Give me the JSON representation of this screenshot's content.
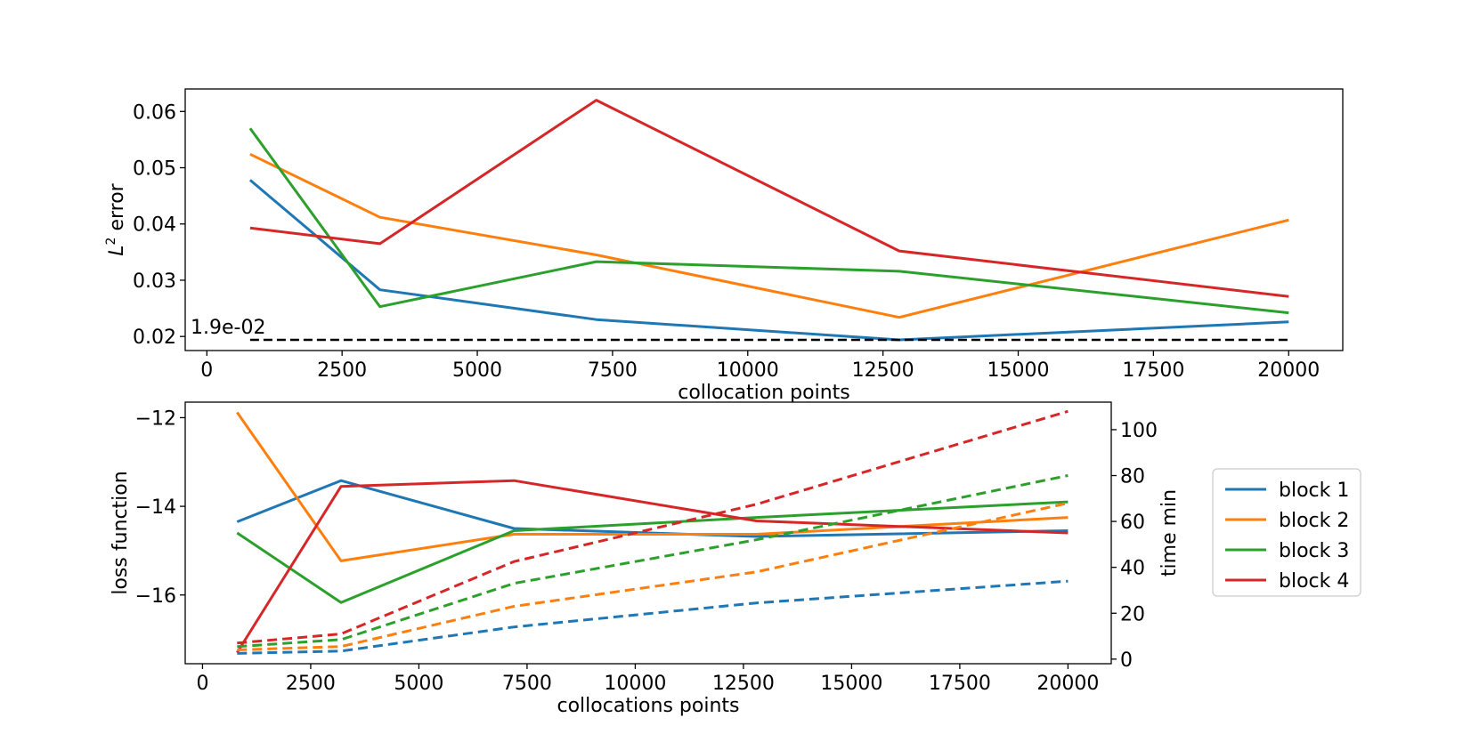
{
  "chart_data": [
    {
      "type": "line",
      "x": [
        800,
        3200,
        7200,
        12800,
        20000
      ],
      "xlabel": "collocation points",
      "ylabel_math": "L",
      "ylabel_sup": "2",
      "ylabel_rest": " error",
      "xlim": [
        -400,
        21000
      ],
      "ylim": [
        0.0175,
        0.064
      ],
      "xticks": [
        0,
        2500,
        5000,
        7500,
        10000,
        12500,
        15000,
        17500,
        20000
      ],
      "xtick_labels": [
        "0",
        "2500",
        "5000",
        "7500",
        "10000",
        "12500",
        "15000",
        "17500",
        "20000"
      ],
      "yticks": [
        0.02,
        0.03,
        0.04,
        0.05,
        0.06
      ],
      "ytick_labels": [
        "0.02",
        "0.03",
        "0.04",
        "0.05",
        "0.06"
      ],
      "series": [
        {
          "name": "block 1",
          "color": "#1f77b4",
          "values": [
            0.0478,
            0.0283,
            0.023,
            0.0194,
            0.0226
          ]
        },
        {
          "name": "block 2",
          "color": "#ff7f0e",
          "values": [
            0.0524,
            0.0412,
            0.0345,
            0.0234,
            0.0407
          ]
        },
        {
          "name": "block 3",
          "color": "#2ca02c",
          "values": [
            0.057,
            0.0253,
            0.0333,
            0.0316,
            0.0242
          ]
        },
        {
          "name": "block 4",
          "color": "#d62728",
          "values": [
            0.0393,
            0.0365,
            0.062,
            0.0352,
            0.0271
          ]
        }
      ],
      "reference_line": {
        "value": 0.0194,
        "x_range": [
          800,
          20000
        ],
        "label": "1.9e-02",
        "style": "dashed",
        "color": "#000000"
      }
    },
    {
      "type": "line",
      "x": [
        800,
        3200,
        7200,
        12800,
        20000
      ],
      "xlabel": "collocations points",
      "ylabel": "loss function",
      "y2label": "time min",
      "xlim": [
        -400,
        21000
      ],
      "ylim": [
        -17.55,
        -11.65
      ],
      "y2lim": [
        -2,
        112
      ],
      "xticks": [
        0,
        2500,
        5000,
        7500,
        10000,
        12500,
        15000,
        17500,
        20000
      ],
      "xtick_labels": [
        "0",
        "2500",
        "5000",
        "7500",
        "10000",
        "12500",
        "15000",
        "17500",
        "20000"
      ],
      "yticks": [
        -12,
        -14,
        -16
      ],
      "ytick_labels": [
        "−12",
        "−14",
        "−16"
      ],
      "y2ticks": [
        0,
        20,
        40,
        60,
        80,
        100
      ],
      "y2tick_labels": [
        "0",
        "20",
        "40",
        "60",
        "80",
        "100"
      ],
      "series": [
        {
          "name": "block 1",
          "color": "#1f77b4",
          "values": [
            -14.35,
            -13.42,
            -14.5,
            -14.68,
            -14.55
          ]
        },
        {
          "name": "block 2",
          "color": "#ff7f0e",
          "values": [
            -11.88,
            -15.23,
            -14.63,
            -14.63,
            -14.25
          ]
        },
        {
          "name": "block 3",
          "color": "#2ca02c",
          "values": [
            -14.6,
            -16.17,
            -14.55,
            -14.25,
            -13.9
          ]
        },
        {
          "name": "block 4",
          "color": "#d62728",
          "values": [
            -17.3,
            -13.55,
            -13.42,
            -14.33,
            -14.6
          ]
        }
      ],
      "time_series": [
        {
          "color": "#1f77b4",
          "values": [
            2.5,
            3.5,
            14.0,
            24.5,
            34.0
          ]
        },
        {
          "color": "#ff7f0e",
          "values": [
            4.0,
            5.5,
            23.0,
            38.0,
            68.0
          ]
        },
        {
          "color": "#2ca02c",
          "values": [
            5.5,
            8.5,
            33.0,
            52.0,
            80.0
          ]
        },
        {
          "color": "#d62728",
          "values": [
            7.0,
            11.0,
            42.5,
            67.5,
            108.0
          ]
        }
      ],
      "legend": {
        "placement": "right",
        "entries": [
          "block 1",
          "block 2",
          "block 3",
          "block 4"
        ]
      }
    }
  ]
}
